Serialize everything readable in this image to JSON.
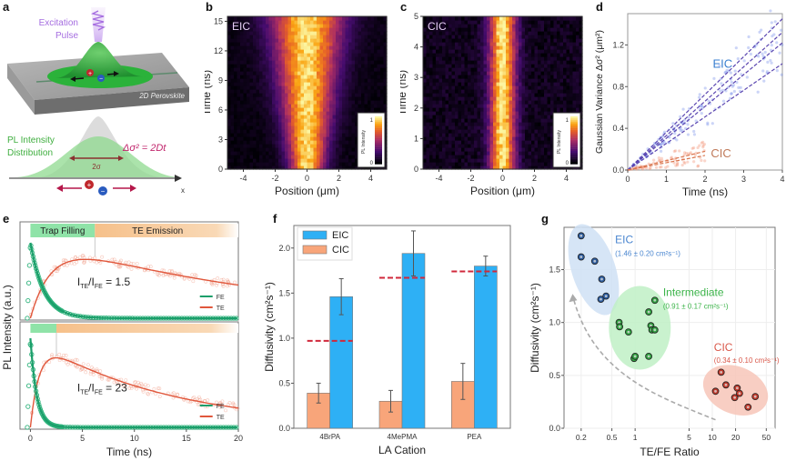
{
  "panel_letters": [
    "a",
    "b",
    "c",
    "d",
    "e",
    "f",
    "g"
  ],
  "panel_a": {
    "excitation_label_1": "Excitation",
    "excitation_label_2": "Pulse",
    "material_label": "2D Perovskite",
    "pl_label_1": "PL Intensity",
    "pl_label_2": "Distribution",
    "equation": "Δσ² = 2Dt",
    "width_label": "2σ",
    "axis_label": "x"
  },
  "chart_data": [
    {
      "id": "b",
      "type": "heatmap",
      "title": "EIC",
      "xlabel": "Position (μm)",
      "ylabel": "Time (ns)",
      "xlim": [
        -5,
        5
      ],
      "ylim": [
        0,
        15.5
      ],
      "xticks": [
        -4,
        -2,
        0,
        2,
        4
      ],
      "yticks": [
        0,
        3,
        6,
        9,
        12,
        15
      ],
      "colorbar": {
        "label": "PL Intensity",
        "min": 0,
        "max": 1
      },
      "sigma0": 0.75,
      "sigma_end": 1.6
    },
    {
      "id": "c",
      "type": "heatmap",
      "title": "CIC",
      "xlabel": "Position (μm)",
      "ylabel": "Time (ns)",
      "xlim": [
        -5,
        5
      ],
      "ylim": [
        0,
        5
      ],
      "xticks": [
        -4,
        -2,
        0,
        2,
        4
      ],
      "yticks": [
        0,
        1,
        2,
        3,
        4,
        5
      ],
      "colorbar": {
        "label": "PL Intensity",
        "min": 0,
        "max": 1
      },
      "sigma0": 0.55,
      "sigma_end": 0.6
    },
    {
      "id": "d",
      "type": "line",
      "xlabel": "Time (ns)",
      "ylabel": "Gaussian Variance Δσ² (μm²)",
      "xlim": [
        0,
        4
      ],
      "ylim": [
        0,
        1.5
      ],
      "xticks": [
        0,
        1,
        2,
        3,
        4
      ],
      "yticks": [
        0.0,
        0.4,
        0.8,
        1.2
      ],
      "annotations": [
        "EIC",
        "CIC"
      ],
      "series": [
        {
          "name": "EIC fit 1",
          "group": "EIC",
          "x": [
            0,
            4
          ],
          "y": [
            0,
            1.45
          ]
        },
        {
          "name": "EIC fit 2",
          "group": "EIC",
          "x": [
            0,
            4
          ],
          "y": [
            0,
            1.32
          ]
        },
        {
          "name": "EIC fit 3",
          "group": "EIC",
          "x": [
            0,
            4
          ],
          "y": [
            0,
            1.22
          ]
        },
        {
          "name": "EIC fit 4",
          "group": "EIC",
          "x": [
            0,
            4
          ],
          "y": [
            0,
            1.02
          ]
        },
        {
          "name": "CIC fit 1",
          "group": "CIC",
          "x": [
            0,
            2
          ],
          "y": [
            0,
            0.18
          ]
        },
        {
          "name": "CIC fit 2",
          "group": "CIC",
          "x": [
            0,
            2
          ],
          "y": [
            0,
            0.14
          ]
        }
      ]
    },
    {
      "id": "e",
      "type": "line",
      "xlabel": "Time (ns)",
      "ylabel": "PL Intensity (a.u.)",
      "xlim": [
        -1,
        20
      ],
      "xticks": [
        0,
        5,
        10,
        15,
        20
      ],
      "subplots": [
        {
          "annotation": "I_TE/I_FE = 1.5",
          "ratio_main": "I",
          "ratio_sub1": "TE",
          "ratio_mid": "/I",
          "ratio_sub2": "FE",
          "ratio_value": " = 1.5",
          "phases": [
            {
              "label": "Trap Filling",
              "end": 6.2
            },
            {
              "label": "TE Emission",
              "end": 20
            }
          ],
          "fe": {
            "rise": 0.15,
            "decay": 1.3
          },
          "te": {
            "rise": 2.2,
            "decay": 22,
            "peak_t": 6
          }
        },
        {
          "annotation": "I_TE/I_FE = 23",
          "ratio_main": "I",
          "ratio_sub1": "TE",
          "ratio_mid": "/I",
          "ratio_sub2": "FE",
          "ratio_value": " = 23",
          "phases": [
            {
              "label": "",
              "end": 2.5
            },
            {
              "label": "",
              "end": 20
            }
          ],
          "fe": {
            "rise": 0.15,
            "decay": 0.6
          },
          "te": {
            "rise": 0.9,
            "decay": 13,
            "peak_t": 2.5
          }
        }
      ],
      "legend": [
        "FE",
        "TE"
      ]
    },
    {
      "id": "f",
      "type": "bar",
      "xlabel": "LA Cation",
      "ylabel": "Diffusivity (cm²s⁻¹)",
      "ylim": [
        0,
        2.25
      ],
      "yticks": [
        0.0,
        0.5,
        1.0,
        1.5,
        2.0
      ],
      "categories": [
        "4BrPA",
        "4MePMA",
        "PEA"
      ],
      "series": [
        {
          "name": "CIC",
          "values": [
            0.39,
            0.3,
            0.52
          ],
          "errors": [
            0.11,
            0.12,
            0.2
          ]
        },
        {
          "name": "EIC",
          "values": [
            1.46,
            1.94,
            1.8
          ],
          "errors": [
            0.2,
            0.25,
            0.11
          ]
        }
      ],
      "reference_lines": [
        0.97,
        1.67,
        1.74
      ],
      "legend": [
        "EIC",
        "CIC"
      ]
    },
    {
      "id": "g",
      "type": "scatter",
      "xlabel": "TE/FE Ratio",
      "ylabel": "Diffusivity (cm²s⁻¹)",
      "xscale": "log",
      "xlim": [
        0.12,
        65
      ],
      "ylim": [
        0,
        1.9
      ],
      "xticks": [
        0.2,
        0.5,
        1,
        5,
        10,
        20,
        50
      ],
      "yticks": [
        0.0,
        0.5,
        1.0,
        1.5
      ],
      "groups": [
        {
          "name": "EIC",
          "label": "EIC",
          "stat": "(1.46 ± 0.20 cm²s⁻¹)",
          "points": [
            [
              0.2,
              1.82
            ],
            [
              0.2,
              1.62
            ],
            [
              0.3,
              1.58
            ],
            [
              0.37,
              1.41
            ],
            [
              0.36,
              1.22
            ],
            [
              0.42,
              1.25
            ]
          ]
        },
        {
          "name": "Intermediate",
          "label": "Intermediate",
          "stat": "(0.91 ± 0.17 cm²s⁻¹)",
          "points": [
            [
              0.62,
              1.0
            ],
            [
              0.63,
              0.96
            ],
            [
              0.82,
              0.91
            ],
            [
              0.97,
              0.66
            ],
            [
              1.0,
              0.68
            ],
            [
              1.5,
              0.68
            ],
            [
              1.5,
              1.1
            ],
            [
              1.6,
              0.97
            ],
            [
              1.65,
              0.93
            ],
            [
              1.8,
              0.93
            ],
            [
              1.8,
              1.21
            ]
          ]
        },
        {
          "name": "CIC",
          "label": "CIC",
          "stat": "(0.34 ± 0.10 cm²s⁻¹)",
          "points": [
            [
              11,
              0.35
            ],
            [
              13,
              0.53
            ],
            [
              15,
              0.41
            ],
            [
              19.5,
              0.29
            ],
            [
              21,
              0.38
            ],
            [
              22.5,
              0.33
            ],
            [
              29,
              0.2
            ],
            [
              36,
              0.3
            ]
          ]
        }
      ]
    }
  ]
}
